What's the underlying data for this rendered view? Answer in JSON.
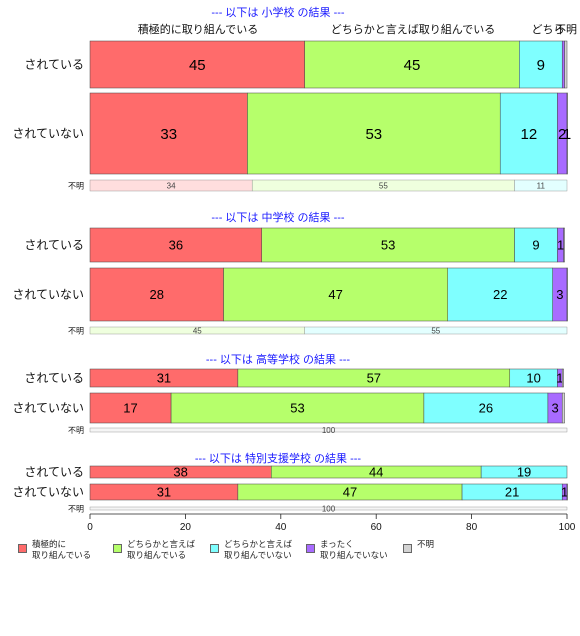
{
  "chart_data": {
    "type": "bar",
    "orientation": "horizontal",
    "stacked": true,
    "series_names": [
      "積極的に\n取り組んでいる",
      "どちらかと言えば\n取り組んでいる",
      "どちらかと言えば\n取り組んでいない",
      "まったく\n取り組んでいない",
      "不明"
    ],
    "colors": [
      "#ff6b6b",
      "#b6ff6b",
      "#7fffff",
      "#a86bff",
      "#d3d3d3"
    ],
    "top_header_labels": [
      "積極的に取り組んでいる",
      "どちらかと言えば取り組んでいる",
      "どちら",
      "不明"
    ],
    "xlim": [
      0,
      100
    ],
    "xticks": [
      0,
      20,
      40,
      60,
      80,
      100
    ],
    "panels": [
      {
        "title": "--- 以下は 小学校 の結果 ---",
        "rows": [
          {
            "label": "されている",
            "values": [
              45,
              45,
              9,
              0.5,
              0.5
            ],
            "labels": [
              "45",
              "45",
              "9",
              "",
              ""
            ]
          },
          {
            "label": "されていない",
            "values": [
              33,
              53,
              12,
              2,
              0.5
            ],
            "labels": [
              "33",
              "53",
              "12",
              "2",
              "1"
            ]
          },
          {
            "label": "不明",
            "values": [
              34,
              55,
              11,
              0,
              0
            ],
            "labels": [
              "34",
              "55",
              "11",
              "",
              ""
            ],
            "pale": true
          }
        ]
      },
      {
        "title": "--- 以下は 中学校 の結果 ---",
        "rows": [
          {
            "label": "されている",
            "values": [
              36,
              53,
              9,
              1.3,
              0.2
            ],
            "labels": [
              "36",
              "53",
              "9",
              "1",
              ""
            ]
          },
          {
            "label": "されていない",
            "values": [
              28,
              47,
              22,
              3,
              0.2
            ],
            "labels": [
              "28",
              "47",
              "22",
              "3",
              ""
            ]
          },
          {
            "label": "不明",
            "values": [
              0,
              45,
              55,
              0,
              0
            ],
            "labels": [
              "",
              "45",
              "55",
              "",
              ""
            ],
            "pale": true
          }
        ]
      },
      {
        "title": "--- 以下は 高等学校 の結果 ---",
        "rows": [
          {
            "label": "されている",
            "values": [
              31,
              57,
              10,
              1,
              0.3
            ],
            "labels": [
              "31",
              "57",
              "10",
              "1",
              ""
            ]
          },
          {
            "label": "されていない",
            "values": [
              17,
              53,
              26,
              3,
              0.5
            ],
            "labels": [
              "17",
              "53",
              "26",
              "3",
              ""
            ]
          },
          {
            "label": "不明",
            "values": [
              0,
              0,
              0,
              0,
              100
            ],
            "labels": [
              "",
              "",
              "",
              "",
              "100"
            ],
            "pale": true
          }
        ]
      },
      {
        "title": "--- 以下は 特別支援学校 の結果 ---",
        "rows": [
          {
            "label": "されている",
            "values": [
              38,
              44,
              19,
              0,
              0
            ],
            "labels": [
              "38",
              "44",
              "19",
              "",
              ""
            ]
          },
          {
            "label": "されていない",
            "values": [
              31,
              47,
              21,
              1,
              0.2
            ],
            "labels": [
              "31",
              "47",
              "21",
              "1",
              ""
            ]
          },
          {
            "label": "不明",
            "values": [
              0,
              0,
              0,
              0,
              100
            ],
            "labels": [
              "",
              "",
              "",
              "",
              "100"
            ],
            "pale": true
          }
        ]
      }
    ]
  }
}
